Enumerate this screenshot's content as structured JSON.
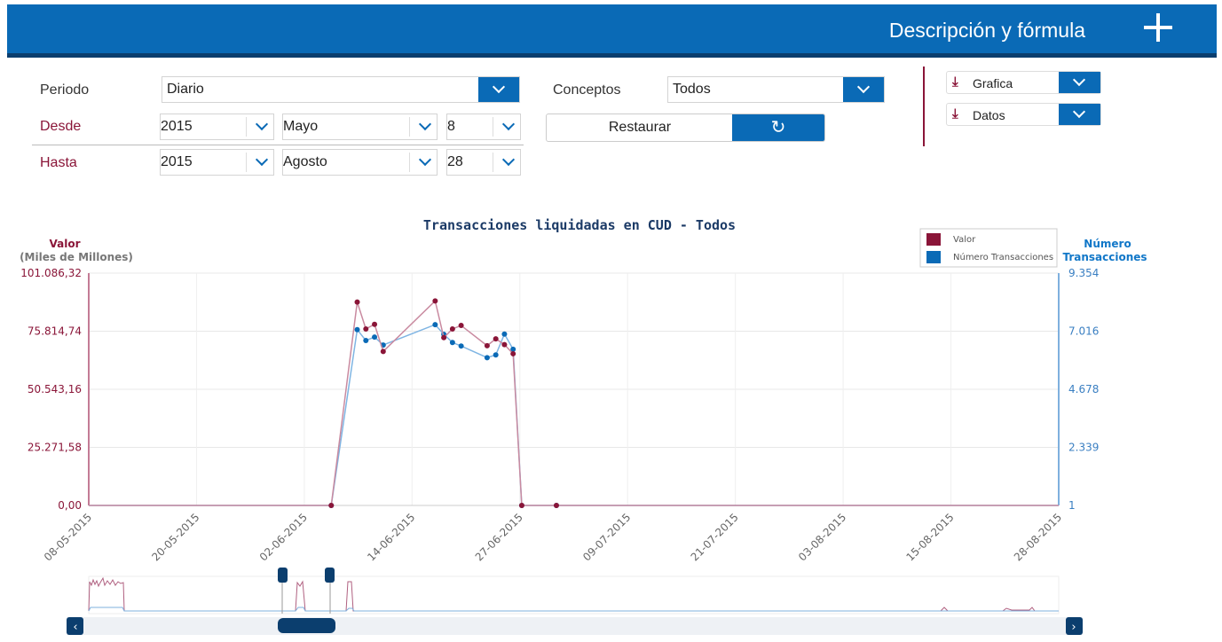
{
  "header": {
    "title": "Descripción y fórmula"
  },
  "filters": {
    "periodo_label": "Periodo",
    "periodo_value": "Diario",
    "conceptos_label": "Conceptos",
    "conceptos_value": "Todos",
    "desde_label": "Desde",
    "desde_year": "2015",
    "desde_month": "Mayo",
    "desde_day": "8",
    "hasta_label": "Hasta",
    "hasta_year": "2015",
    "hasta_month": "Agosto",
    "hasta_day": "28",
    "restaurar_label": "Restaurar"
  },
  "downloads": {
    "grafica_label": "Grafica",
    "datos_label": "Datos"
  },
  "colors": {
    "brand_blue": "#0a6ab6",
    "valor": "#8a1538",
    "transacciones": "#1177c8"
  },
  "chart_data": {
    "type": "line",
    "title": "Transacciones liquidadas en CUD - Todos",
    "ylabel_left": "Valor",
    "ylabel_left_sub": "(Miles de Millones)",
    "ylabel_right_1": "Número",
    "ylabel_right_2": "Transacciones",
    "yticks_left": [
      "0,00",
      "25.271,58",
      "50.543,16",
      "75.814,74",
      "101.086,32"
    ],
    "yticks_right": [
      "1",
      "2.339",
      "4.678",
      "7.016",
      "9.354"
    ],
    "ylim_left": [
      0,
      101086.32
    ],
    "ylim_right": [
      1,
      9354
    ],
    "xlim": [
      "2015-05-08",
      "2015-08-28"
    ],
    "xtick_labels": [
      "08-05-2015",
      "20-05-2015",
      "02-06-2015",
      "14-06-2015",
      "27-06-2015",
      "09-07-2015",
      "21-07-2015",
      "03-08-2015",
      "15-08-2015",
      "28-08-2015"
    ],
    "legend": [
      "Valor",
      "Número Transacciones"
    ],
    "legend_position": "top-right",
    "grid": true,
    "series": [
      {
        "name": "Valor",
        "axis": "left",
        "points": [
          [
            "2015-06-05",
            0
          ],
          [
            "2015-06-08",
            88500
          ],
          [
            "2015-06-09",
            76800
          ],
          [
            "2015-06-10",
            78800
          ],
          [
            "2015-06-11",
            67000
          ],
          [
            "2015-06-17",
            89000
          ],
          [
            "2015-06-18",
            73000
          ],
          [
            "2015-06-19",
            76800
          ],
          [
            "2015-06-20",
            78300
          ],
          [
            "2015-06-23",
            69500
          ],
          [
            "2015-06-24",
            72500
          ],
          [
            "2015-06-25",
            70000
          ],
          [
            "2015-06-26",
            66000
          ],
          [
            "2015-06-27",
            0
          ],
          [
            "2015-07-01",
            0
          ]
        ]
      },
      {
        "name": "Número Transacciones",
        "axis": "right",
        "points": [
          [
            "2015-06-05",
            1
          ],
          [
            "2015-06-08",
            7080
          ],
          [
            "2015-06-09",
            6640
          ],
          [
            "2015-06-10",
            6780
          ],
          [
            "2015-06-11",
            6460
          ],
          [
            "2015-06-17",
            7280
          ],
          [
            "2015-06-18",
            6890
          ],
          [
            "2015-06-19",
            6560
          ],
          [
            "2015-06-20",
            6420
          ],
          [
            "2015-06-23",
            5950
          ],
          [
            "2015-06-24",
            6060
          ],
          [
            "2015-06-25",
            6900
          ],
          [
            "2015-06-26",
            6290
          ],
          [
            "2015-06-27",
            1
          ],
          [
            "2015-07-01",
            1
          ]
        ]
      }
    ]
  }
}
